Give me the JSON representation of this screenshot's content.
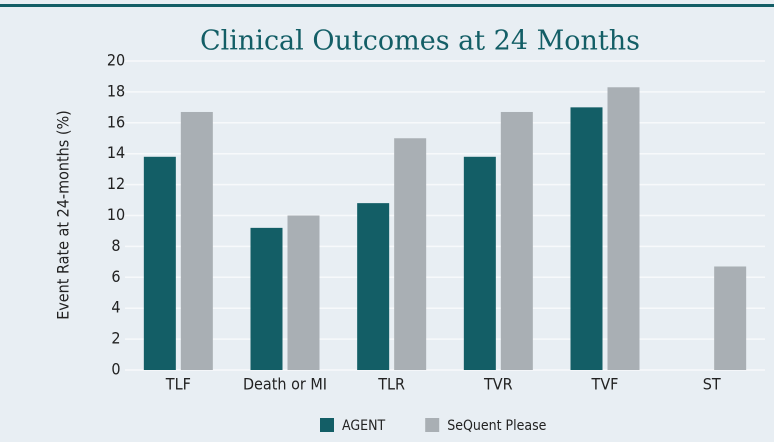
{
  "chart_data": {
    "type": "bar",
    "title": "Clinical Outcomes at 24 Months",
    "y_label": "Event Rate at 24-months (%)",
    "categories": [
      "TLF",
      "Death or MI",
      "TLR",
      "TVR",
      "TVF",
      "ST"
    ],
    "series": [
      {
        "name": "AGENT",
        "color": "#135e66",
        "values": [
          13.8,
          9.2,
          10.8,
          13.8,
          17.0,
          null
        ]
      },
      {
        "name": "SeQuent Please",
        "color": "#a9afb4",
        "values": [
          16.7,
          10.0,
          15.0,
          16.7,
          18.3,
          6.7
        ]
      }
    ],
    "ylim": [
      0,
      20
    ],
    "yticks": [
      0,
      2,
      4,
      6,
      8,
      10,
      12,
      14,
      16,
      18,
      20
    ],
    "grid": true,
    "legend": "bottom"
  }
}
